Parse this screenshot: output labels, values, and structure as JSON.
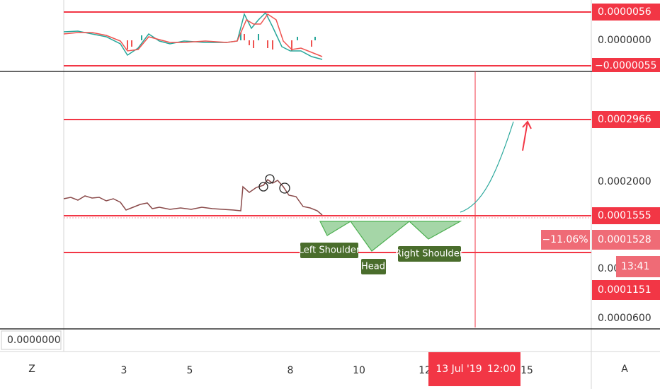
{
  "top_pane": {
    "price_labels": [
      "0.0000056",
      "0.0000000",
      "−0.0000055"
    ]
  },
  "main_pane": {
    "price_labels": {
      "target": "0.0002966",
      "level_2": "0.0002000",
      "neckline": "0.0001555",
      "change": "−11.06%",
      "current": "0.0001528",
      "hidden": "0.00",
      "countdown": "13:41",
      "support": "0.0001151",
      "level_low": "0.0000600"
    },
    "annotations": [
      "Left Shoulder",
      "Head",
      "Right Shoulder"
    ]
  },
  "bottom_pane": {
    "price_label": "0.0000000"
  },
  "time_axis": {
    "labels": [
      "3",
      "5",
      "8",
      "10",
      "12",
      "15"
    ],
    "crosshair_date": "13 Jul '19",
    "crosshair_time": "12:00"
  },
  "corner_buttons": {
    "left": "Z",
    "right": "A"
  }
}
